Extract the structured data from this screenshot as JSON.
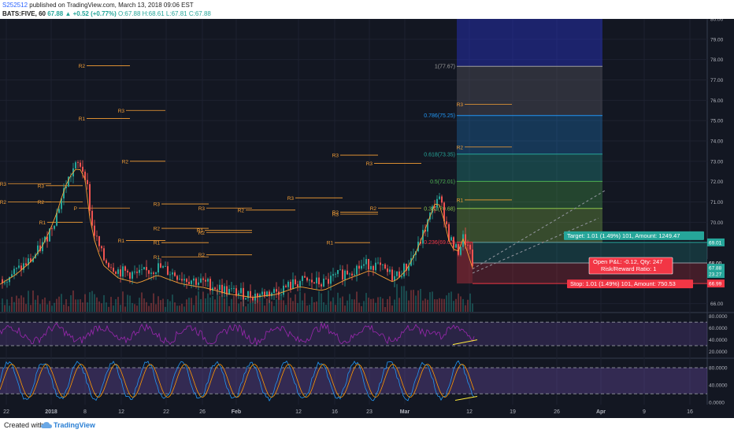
{
  "header": {
    "user": "S252512",
    "published": "published on TradingView.com, March 13, 2018 09:06 EST",
    "symbol": "BATS:FIVE, 60",
    "change": "67.88 ▲ +0.52 (+0.77%)",
    "ohlc": "O:67.88 H:68.61 L:67.81 C:67.88"
  },
  "footer": {
    "created": "Created with",
    "brand": "TradingView"
  },
  "chart_data": {
    "type": "candlestick",
    "symbol": "BATS:FIVE",
    "interval": "60",
    "ylim": [
      65.6,
      80.0
    ],
    "price_ticks": [
      "80.00",
      "79.00",
      "78.00",
      "77.00",
      "76.00",
      "75.00",
      "74.00",
      "73.00",
      "72.00",
      "71.00",
      "70.00",
      "69.00",
      "66.00"
    ],
    "x_ticks": [
      "22",
      "2018",
      "8",
      "12",
      "22",
      "26",
      "Feb",
      "12",
      "16",
      "23",
      "Mar",
      "12",
      "19",
      "26",
      "Apr",
      "9",
      "16"
    ],
    "fibonacci": [
      {
        "label": "1(77.67)",
        "value": 77.67,
        "color": "#9e9e9e"
      },
      {
        "label": "0.786(75.25)",
        "value": 75.25,
        "color": "#2196f3"
      },
      {
        "label": "0.618(73.35)",
        "value": 73.35,
        "color": "#26a69a"
      },
      {
        "label": "0.5(72.01)",
        "value": 72.01,
        "color": "#4caf50"
      },
      {
        "label": "0.382(70.68)",
        "value": 70.68,
        "color": "#8bc34a"
      },
      {
        "label": "0.236(69.02)",
        "value": 69.02,
        "color": "#f23645"
      }
    ],
    "pivots": [
      {
        "label": "R2",
        "price": 77.7
      },
      {
        "label": "R1",
        "price": 75.1
      },
      {
        "label": "R3",
        "price": 75.5
      },
      {
        "label": "R2",
        "price": 73.0
      },
      {
        "label": "R3",
        "price": 71.9
      },
      {
        "label": "R3",
        "price": 71.8
      },
      {
        "label": "R2",
        "price": 71.0
      },
      {
        "label": "R2",
        "price": 71.0
      },
      {
        "label": "P",
        "price": 70.7
      },
      {
        "label": "R1",
        "price": 70.0
      },
      {
        "label": "R3",
        "price": 70.9
      },
      {
        "label": "R3",
        "price": 70.7
      },
      {
        "label": "R2",
        "price": 69.7
      },
      {
        "label": "R1",
        "price": 69.1
      },
      {
        "label": "R2",
        "price": 69.5
      },
      {
        "label": "R1",
        "price": 68.3
      },
      {
        "label": "R3",
        "price": 71.2
      },
      {
        "label": "R2",
        "price": 70.6
      },
      {
        "label": "R3",
        "price": 70.4
      },
      {
        "label": "R1",
        "price": 69.0
      },
      {
        "label": "R2",
        "price": 68.4
      },
      {
        "label": "R3",
        "price": 73.3
      },
      {
        "label": "R3",
        "price": 72.9
      },
      {
        "label": "R2",
        "price": 70.5
      },
      {
        "label": "R1",
        "price": 69.6
      },
      {
        "label": "R1",
        "price": 69.0
      },
      {
        "label": "R2",
        "price": 70.7
      },
      {
        "label": "R3",
        "price": 75.8
      },
      {
        "label": "R2",
        "price": 73.7
      },
      {
        "label": "R1",
        "price": 71.1
      }
    ],
    "position": {
      "target_label": "Target: 1.01 (1.49%) 101, Amount: 1249.47",
      "open_label": "Open P&L: -0.12, Qty: 247",
      "rr_label": "Risk/Reward Ratio: 1",
      "stop_label": "Stop: 1.01 (1.49%) 101, Amount: 750.53",
      "target": 69.01,
      "entry": 68.0,
      "stop": 66.99
    },
    "price_tags": [
      {
        "value": "69.01",
        "color": "#26a69a"
      },
      {
        "value": "68.00",
        "color": "#131722"
      },
      {
        "value": "67.88",
        "color": "#26a69a"
      },
      {
        "value": "23.27",
        "color": "#26a69a"
      },
      {
        "value": "66.99",
        "color": "#f23645"
      }
    ],
    "rsi": {
      "ticks": [
        "80.0000",
        "60.0000",
        "40.0000",
        "20.0000"
      ],
      "levels": [
        70,
        30
      ]
    },
    "stoch": {
      "ticks": [
        "80.0000",
        "40.0000",
        "0.0000"
      ],
      "levels": [
        80,
        20
      ]
    }
  }
}
